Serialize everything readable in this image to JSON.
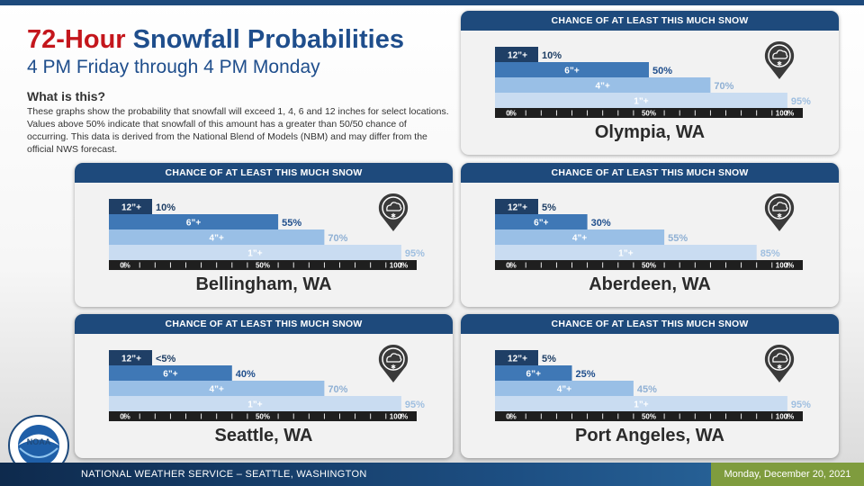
{
  "header": {
    "title_highlight": "72-Hour",
    "title_rest": " Snowfall Probabilities",
    "subtitle": "4 PM Friday through 4 PM Monday",
    "what_heading": "What is this?",
    "what_text": "These graphs show the probability that snowfall will exceed 1, 4, 6 and 12 inches for select locations. Values above 50% indicate that snowfall of this amount has a greater than 50/50 chance of occurring. This data is derived from the National Blend of Models (NBM) and may differ from the official NWS forecast."
  },
  "footer": {
    "office": "NATIONAL WEATHER SERVICE – SEATTLE, WASHINGTON",
    "date": "Monday, December 20, 2021"
  },
  "logo": {
    "text": "NOAA"
  },
  "colors": {
    "header": "#1e4a7c",
    "bar_12": "#1f3f66",
    "bar_6": "#3f78b6",
    "bar_4": "#99bfe6",
    "bar_1": "#c9dcf1",
    "axis": "#1f1f1f",
    "accent_red": "#c4161c"
  },
  "chart_data": [
    {
      "type": "bar",
      "title": "CHANCE OF AT LEAST THIS MUCH SNOW",
      "location": "Olympia, WA",
      "categories": [
        "12”+",
        "6”+",
        "4”+",
        "1”+"
      ],
      "values": [
        10,
        50,
        70,
        95
      ],
      "labels": [
        "10%",
        "50%",
        "70%",
        "95%"
      ],
      "ticks": [
        "0%",
        "50%",
        "100%"
      ],
      "xlim": [
        0,
        100
      ]
    },
    {
      "type": "bar",
      "title": "CHANCE OF AT LEAST THIS MUCH SNOW",
      "location": "Bellingham, WA",
      "categories": [
        "12”+",
        "6”+",
        "4”+",
        "1”+"
      ],
      "values": [
        10,
        55,
        70,
        95
      ],
      "labels": [
        "10%",
        "55%",
        "70%",
        "95%"
      ],
      "ticks": [
        "0%",
        "50%",
        "100%"
      ],
      "xlim": [
        0,
        100
      ]
    },
    {
      "type": "bar",
      "title": "CHANCE OF AT LEAST THIS MUCH SNOW",
      "location": "Aberdeen, WA",
      "categories": [
        "12”+",
        "6”+",
        "4”+",
        "1”+"
      ],
      "values": [
        5,
        30,
        55,
        85
      ],
      "labels": [
        "5%",
        "30%",
        "55%",
        "85%"
      ],
      "ticks": [
        "0%",
        "50%",
        "100%"
      ],
      "xlim": [
        0,
        100
      ]
    },
    {
      "type": "bar",
      "title": "CHANCE OF AT LEAST THIS MUCH SNOW",
      "location": "Seattle, WA",
      "categories": [
        "12”+",
        "6”+",
        "4”+",
        "1”+"
      ],
      "values": [
        4,
        40,
        70,
        95
      ],
      "labels": [
        "<5%",
        "40%",
        "70%",
        "95%"
      ],
      "ticks": [
        "0%",
        "50%",
        "100%"
      ],
      "xlim": [
        0,
        100
      ]
    },
    {
      "type": "bar",
      "title": "CHANCE OF AT LEAST THIS MUCH SNOW",
      "location": "Port Angeles, WA",
      "categories": [
        "12”+",
        "6”+",
        "4”+",
        "1”+"
      ],
      "values": [
        5,
        25,
        45,
        95
      ],
      "labels": [
        "5%",
        "25%",
        "45%",
        "95%"
      ],
      "ticks": [
        "0%",
        "50%",
        "100%"
      ],
      "xlim": [
        0,
        100
      ]
    }
  ]
}
